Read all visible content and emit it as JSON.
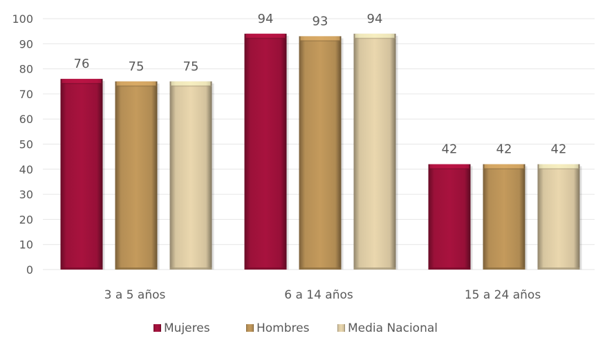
{
  "chart_data": {
    "type": "bar",
    "categories": [
      "3 a 5 años",
      "6 a 14 años",
      "15 a 24 años"
    ],
    "series": [
      {
        "name": "Mujeres",
        "values": [
          76,
          94,
          42
        ],
        "color": "#a8123e"
      },
      {
        "name": "Hombres",
        "values": [
          75,
          93,
          42
        ],
        "color": "#c49a5c"
      },
      {
        "name": "Media Nacional",
        "values": [
          75,
          94,
          42
        ],
        "color": "#ead7ae"
      }
    ],
    "yticks": [
      0,
      10,
      20,
      30,
      40,
      50,
      60,
      70,
      80,
      90,
      100
    ],
    "ylim": [
      0,
      100
    ],
    "grid": true,
    "legend": "bottom",
    "data_labels": true
  }
}
